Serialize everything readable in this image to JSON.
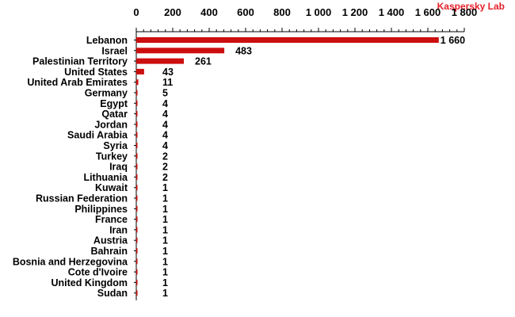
{
  "brand": {
    "label": "Kaspersky Lab",
    "color": "#e8202a"
  },
  "colors": {
    "bar": "#cc0e0e",
    "text": "#000000",
    "axis": "#000000"
  },
  "chart_data": {
    "type": "bar",
    "orientation": "horizontal",
    "title": "",
    "xlabel": "",
    "ylabel": "",
    "xlim": [
      0,
      1800
    ],
    "x_ticks": [
      0,
      200,
      400,
      600,
      800,
      1000,
      1200,
      1400,
      1600,
      1800
    ],
    "x_tick_labels": [
      "0",
      "200",
      "400",
      "600",
      "800",
      "1 000",
      "1 200",
      "1 400",
      "1 600",
      "1 800"
    ],
    "x_axis_position": "top",
    "grid": false,
    "legend": "none",
    "categories": [
      "Lebanon",
      "Israel",
      "Palestinian Territory",
      "United States",
      "United Arab Emirates",
      "Germany",
      "Egypt",
      "Qatar",
      "Jordan",
      "Saudi Arabia",
      "Syria",
      "Turkey",
      "Iraq",
      "Lithuania",
      "Kuwait",
      "Russian Federation",
      "Philippines",
      "France",
      "Iran",
      "Austria",
      "Bahrain",
      "Bosnia and Herzegovina",
      "Cote d'Ivoire",
      "United Kingdom",
      "Sudan"
    ],
    "values": [
      1660,
      483,
      261,
      43,
      11,
      5,
      4,
      4,
      4,
      4,
      4,
      2,
      2,
      2,
      1,
      1,
      1,
      1,
      1,
      1,
      1,
      1,
      1,
      1,
      1
    ],
    "value_labels": [
      "1 660",
      "483",
      "261",
      "43",
      "11",
      "5",
      "4",
      "4",
      "4",
      "4",
      "4",
      "2",
      "2",
      "2",
      "1",
      "1",
      "1",
      "1",
      "1",
      "1",
      "1",
      "1",
      "1",
      "1",
      "1"
    ]
  }
}
